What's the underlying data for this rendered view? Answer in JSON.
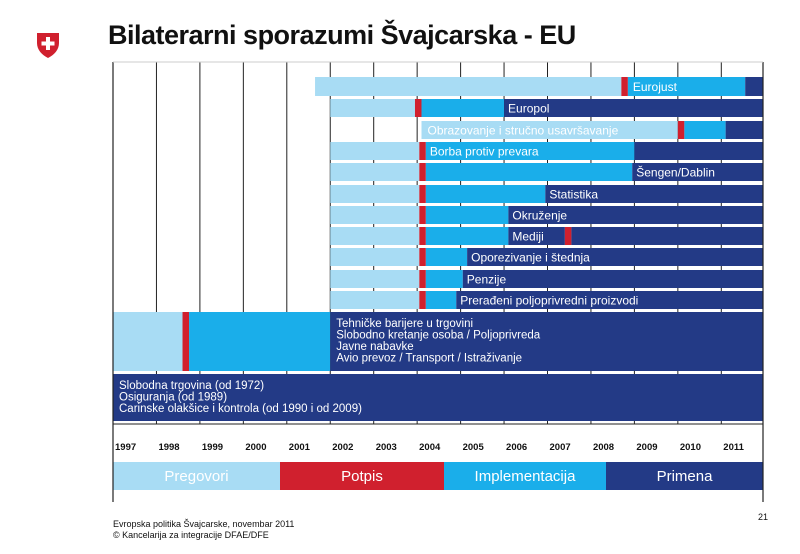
{
  "title": "Bilaterarni sporazumi Švajcarska - EU",
  "footer": {
    "line1": "Evropska politika Švajcarske, novembar 2011",
    "line2": "© Kancelarija za integracije DFAE/DFE",
    "page_number": "21"
  },
  "colors": {
    "pregovori": "#a8dcf4",
    "potpis": "#d0202e",
    "implementacija": "#1aaeea",
    "primena": "#233a86"
  },
  "chart_data": {
    "type": "gantt",
    "years": [
      "1997",
      "1998",
      "1999",
      "2000",
      "2001",
      "2002",
      "2003",
      "2004",
      "2005",
      "2006",
      "2007",
      "2008",
      "2009",
      "2010",
      "2011"
    ],
    "legend": [
      {
        "key": "pregovori",
        "label": "Pregovori"
      },
      {
        "key": "potpis",
        "label": "Potpis"
      },
      {
        "key": "implementacija",
        "label": "Implementacija"
      },
      {
        "key": "primena",
        "label": "Primena"
      }
    ],
    "rows": [
      {
        "labels": [
          "Eurojust"
        ],
        "segments": [
          [
            "pregovori",
            2001.65,
            2008.7
          ],
          [
            "potpis",
            2008.7,
            2008.85
          ],
          [
            "implementacija",
            2008.85,
            2011.55
          ],
          [
            "primena",
            2011.55,
            2012.2
          ]
        ]
      },
      {
        "labels": [
          "Europol"
        ],
        "segments": [
          [
            "pregovori",
            2002.0,
            2003.95
          ],
          [
            "potpis",
            2003.95,
            2004.1
          ],
          [
            "implementacija",
            2004.1,
            2006.0
          ],
          [
            "primena",
            2006.0,
            2012.2
          ]
        ]
      },
      {
        "labels": [
          "Obrazovanje i stručno usavršavanje"
        ],
        "segments": [
          [
            "pregovori",
            2004.1,
            2010.0
          ],
          [
            "potpis",
            2010.0,
            2010.15
          ],
          [
            "implementacija",
            2010.15,
            2011.1
          ],
          [
            "primena",
            2011.1,
            2012.2
          ]
        ]
      },
      {
        "labels": [
          "Borba protiv prevara"
        ],
        "segments": [
          [
            "pregovori",
            2002.0,
            2004.05
          ],
          [
            "potpis",
            2004.05,
            2004.2
          ],
          [
            "implementacija",
            2004.2,
            2009.0
          ],
          [
            "primena",
            2009.0,
            2012.2
          ]
        ]
      },
      {
        "labels": [
          "Šengen/Dablin"
        ],
        "segments": [
          [
            "pregovori",
            2002.0,
            2004.05
          ],
          [
            "potpis",
            2004.05,
            2004.2
          ],
          [
            "implementacija",
            2004.2,
            2008.95
          ],
          [
            "primena",
            2008.95,
            2012.2
          ]
        ]
      },
      {
        "labels": [
          "Statistika"
        ],
        "segments": [
          [
            "pregovori",
            2002.0,
            2004.05
          ],
          [
            "potpis",
            2004.05,
            2004.2
          ],
          [
            "implementacija",
            2004.2,
            2006.95
          ],
          [
            "primena",
            2006.95,
            2012.2
          ]
        ]
      },
      {
        "labels": [
          "Okruženje"
        ],
        "segments": [
          [
            "pregovori",
            2002.0,
            2004.05
          ],
          [
            "potpis",
            2004.05,
            2004.2
          ],
          [
            "implementacija",
            2004.2,
            2006.1
          ],
          [
            "primena",
            2006.1,
            2012.2
          ]
        ]
      },
      {
        "labels": [
          "Mediji"
        ],
        "segments": [
          [
            "pregovori",
            2002.0,
            2004.05
          ],
          [
            "potpis",
            2004.05,
            2004.2
          ],
          [
            "implementacija",
            2004.2,
            2006.1
          ],
          [
            "primena",
            2006.1,
            2007.4
          ],
          [
            "potpis",
            2007.4,
            2007.55
          ],
          [
            "primena",
            2007.55,
            2012.2
          ]
        ]
      },
      {
        "labels": [
          "Oporezivanje i štednja"
        ],
        "segments": [
          [
            "pregovori",
            2002.0,
            2004.05
          ],
          [
            "potpis",
            2004.05,
            2004.2
          ],
          [
            "implementacija",
            2004.2,
            2005.15
          ],
          [
            "primena",
            2005.15,
            2012.2
          ]
        ]
      },
      {
        "labels": [
          "Penzije"
        ],
        "segments": [
          [
            "pregovori",
            2002.0,
            2004.05
          ],
          [
            "potpis",
            2004.05,
            2004.2
          ],
          [
            "implementacija",
            2004.2,
            2005.05
          ],
          [
            "primena",
            2005.05,
            2012.2
          ]
        ]
      },
      {
        "labels": [
          "Prerađeni poljoprivredni proizvodi"
        ],
        "segments": [
          [
            "pregovori",
            2002.0,
            2004.05
          ],
          [
            "potpis",
            2004.05,
            2004.2
          ],
          [
            "implementacija",
            2004.2,
            2004.9
          ],
          [
            "primena",
            2004.9,
            2012.2
          ]
        ]
      },
      {
        "labels": [
          "Tehničke barijere u trgovini",
          "Slobodno kretanje osoba / Poljoprivreda",
          "Javne nabavke",
          "Avio prevoz / Transport / Istraživanje"
        ],
        "segments": [
          [
            "pregovori",
            1997.0,
            1998.6
          ],
          [
            "potpis",
            1998.6,
            1998.75
          ],
          [
            "implementacija",
            1998.75,
            2002.0
          ],
          [
            "primena",
            2002.0,
            2012.2
          ]
        ]
      },
      {
        "labels": [
          "Slobodna trgovina (od 1972)",
          "Osiguranja (od 1989)",
          "Carinske olakšice i kontrola (od 1990 i od 2009)"
        ],
        "segments": [
          [
            "primena",
            1997.0,
            2012.2
          ]
        ]
      }
    ]
  }
}
